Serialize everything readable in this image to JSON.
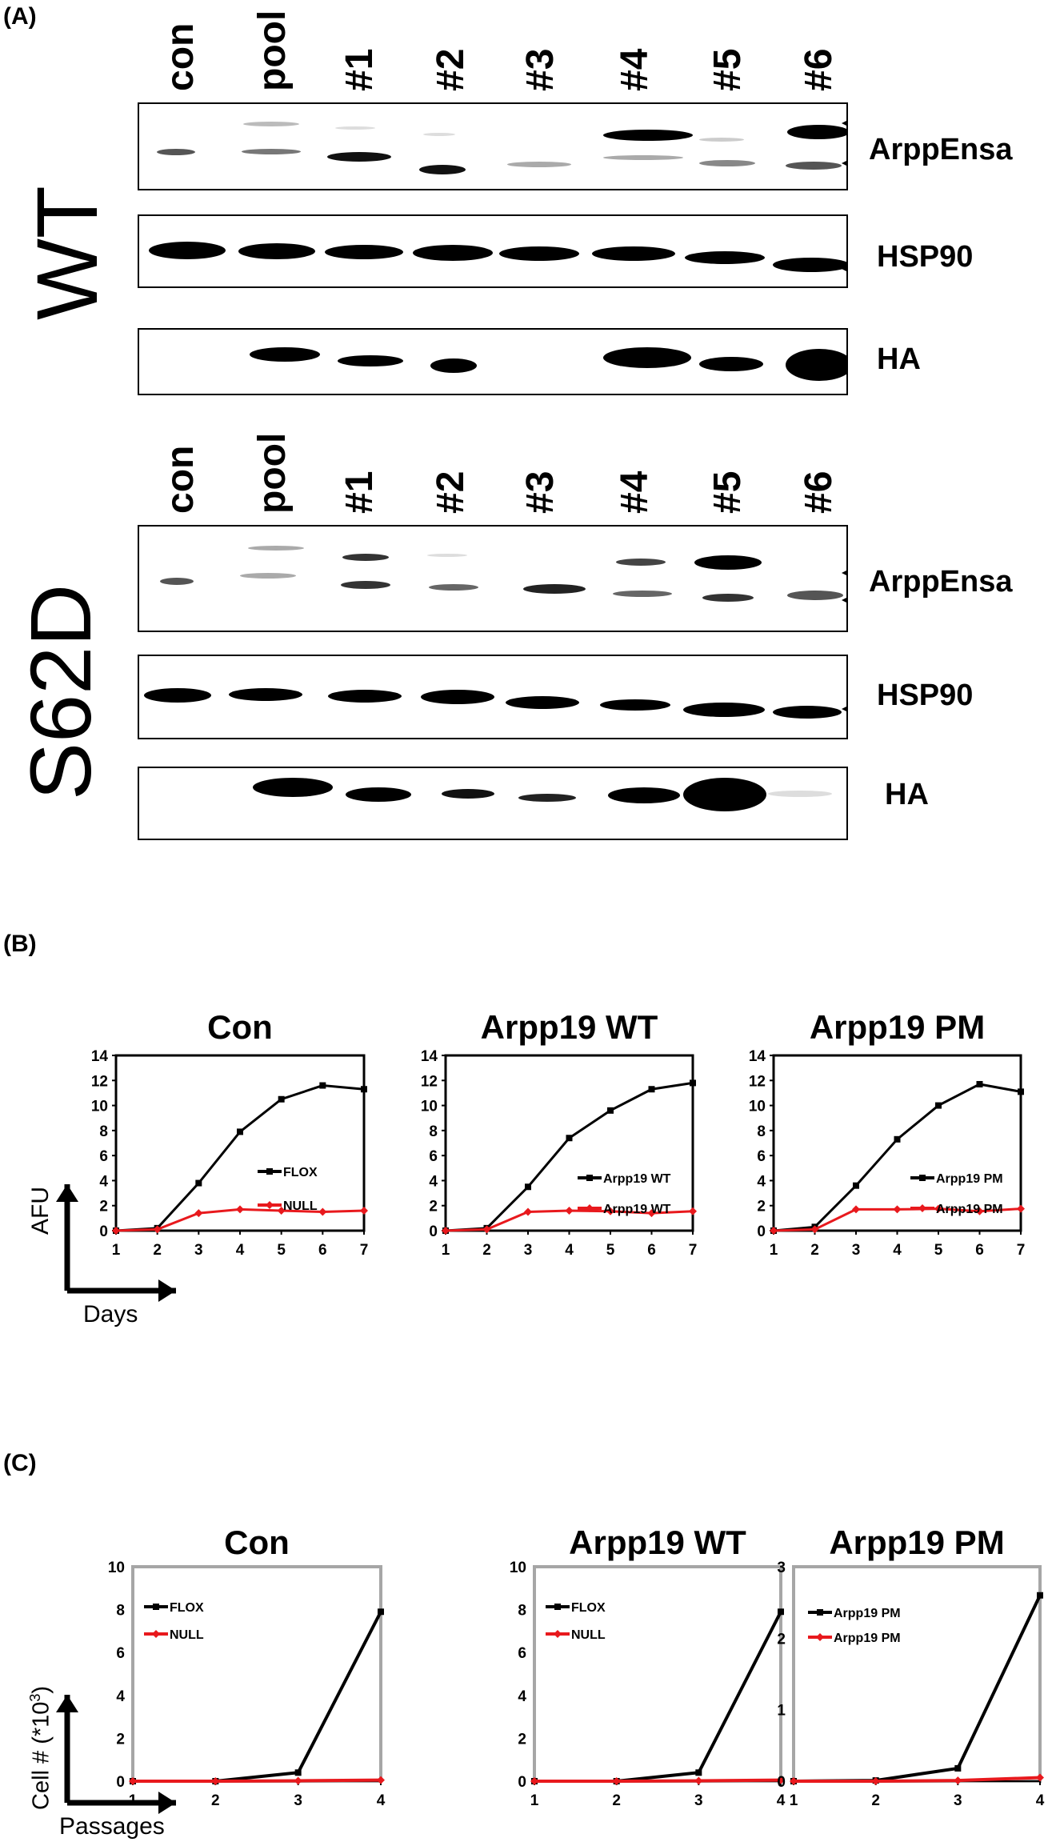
{
  "panels": {
    "A": "(A)",
    "B": "(B)",
    "C": "(C)"
  },
  "blots": {
    "lanes": [
      "con",
      "pool",
      "#1",
      "#2",
      "#3",
      "#4",
      "#5",
      "#6"
    ],
    "wt_label": "WT",
    "s62d_label": "S62D",
    "labels": {
      "arppensa": "ArppEnsa",
      "hsp90": "HSP90",
      "ha": "HA"
    }
  },
  "afu_charts": {
    "y_axis_label": "AFU",
    "x_axis_label": "Days",
    "ticks_y": [
      "0",
      "2",
      "4",
      "6",
      "8",
      "10",
      "12",
      "14"
    ],
    "ticks_x": [
      "1",
      "2",
      "3",
      "4",
      "5",
      "6",
      "7"
    ]
  },
  "cell_charts": {
    "y_axis_label": "Cell # (*10",
    "y_axis_sup": "3",
    "y_axis_close": ")",
    "x_axis_label": "Passages"
  },
  "colors": {
    "black_series": "#000000",
    "red_series": "#e8191d",
    "plot_border_c": "#a6a6a6"
  },
  "chart_data": [
    {
      "type": "line",
      "title": "Con",
      "x": [
        1,
        2,
        3,
        4,
        5,
        6,
        7
      ],
      "ylim": [
        0,
        14
      ],
      "series": [
        {
          "name": "FLOX",
          "color": "#000000",
          "values": [
            0,
            0.2,
            3.8,
            7.9,
            10.5,
            11.6,
            11.3
          ]
        },
        {
          "name": "NULL",
          "color": "#e8191d",
          "values": [
            0,
            0.1,
            1.4,
            1.7,
            1.6,
            1.5,
            1.6
          ]
        }
      ]
    },
    {
      "type": "line",
      "title": "Arpp19 WT",
      "x": [
        1,
        2,
        3,
        4,
        5,
        6,
        7
      ],
      "ylim": [
        0,
        14
      ],
      "series": [
        {
          "name": "Arpp19 WT",
          "color": "#000000",
          "values": [
            0,
            0.2,
            3.5,
            7.4,
            9.6,
            11.3,
            11.8
          ]
        },
        {
          "name": "Arpp19 WT",
          "color": "#e8191d",
          "values": [
            0,
            0.1,
            1.5,
            1.6,
            1.55,
            1.4,
            1.55
          ]
        }
      ]
    },
    {
      "type": "line",
      "title": "Arpp19 PM",
      "x": [
        1,
        2,
        3,
        4,
        5,
        6,
        7
      ],
      "ylim": [
        0,
        14
      ],
      "series": [
        {
          "name": "Arpp19 PM",
          "color": "#000000",
          "values": [
            0,
            0.3,
            3.6,
            7.3,
            10.0,
            11.7,
            11.1
          ]
        },
        {
          "name": "Arpp19 PM",
          "color": "#e8191d",
          "values": [
            0,
            0.1,
            1.7,
            1.7,
            1.75,
            1.55,
            1.75
          ]
        }
      ]
    },
    {
      "type": "line",
      "title": "Con",
      "x": [
        1,
        2,
        3,
        4
      ],
      "ylim": [
        0,
        10
      ],
      "ticks_y": [
        "0",
        "2",
        "4",
        "6",
        "8",
        "10"
      ],
      "ticks_x": [
        "1",
        "2",
        "3",
        "4"
      ],
      "series": [
        {
          "name": "FLOX",
          "color": "#000000",
          "values": [
            0,
            0,
            0.4,
            7.9
          ]
        },
        {
          "name": "NULL",
          "color": "#e8191d",
          "values": [
            0,
            0,
            0.02,
            0.05
          ]
        }
      ]
    },
    {
      "type": "line",
      "title": "Arpp19 WT",
      "x": [
        1,
        2,
        3,
        4
      ],
      "ylim": [
        0,
        10
      ],
      "ticks_y": [
        "0",
        "2",
        "4",
        "6",
        "8",
        "10"
      ],
      "ticks_x": [
        "1",
        "2",
        "3",
        "4"
      ],
      "series": [
        {
          "name": "FLOX",
          "color": "#000000",
          "values": [
            0,
            0,
            0.4,
            7.9
          ]
        },
        {
          "name": "NULL",
          "color": "#e8191d",
          "values": [
            0,
            0,
            0.02,
            0.05
          ]
        }
      ]
    },
    {
      "type": "line",
      "title": "Arpp19 PM",
      "x": [
        1,
        2,
        3,
        4
      ],
      "ylim": [
        0,
        3
      ],
      "ticks_y": [
        "0",
        "1",
        "2",
        "3"
      ],
      "ticks_x": [
        "1",
        "2",
        "3",
        "4"
      ],
      "series": [
        {
          "name": "Arpp19 PM",
          "color": "#000000",
          "values": [
            0,
            0.01,
            0.18,
            2.6
          ]
        },
        {
          "name": "Arpp19 PM",
          "color": "#e8191d",
          "values": [
            0,
            0,
            0.01,
            0.05
          ]
        }
      ]
    }
  ]
}
